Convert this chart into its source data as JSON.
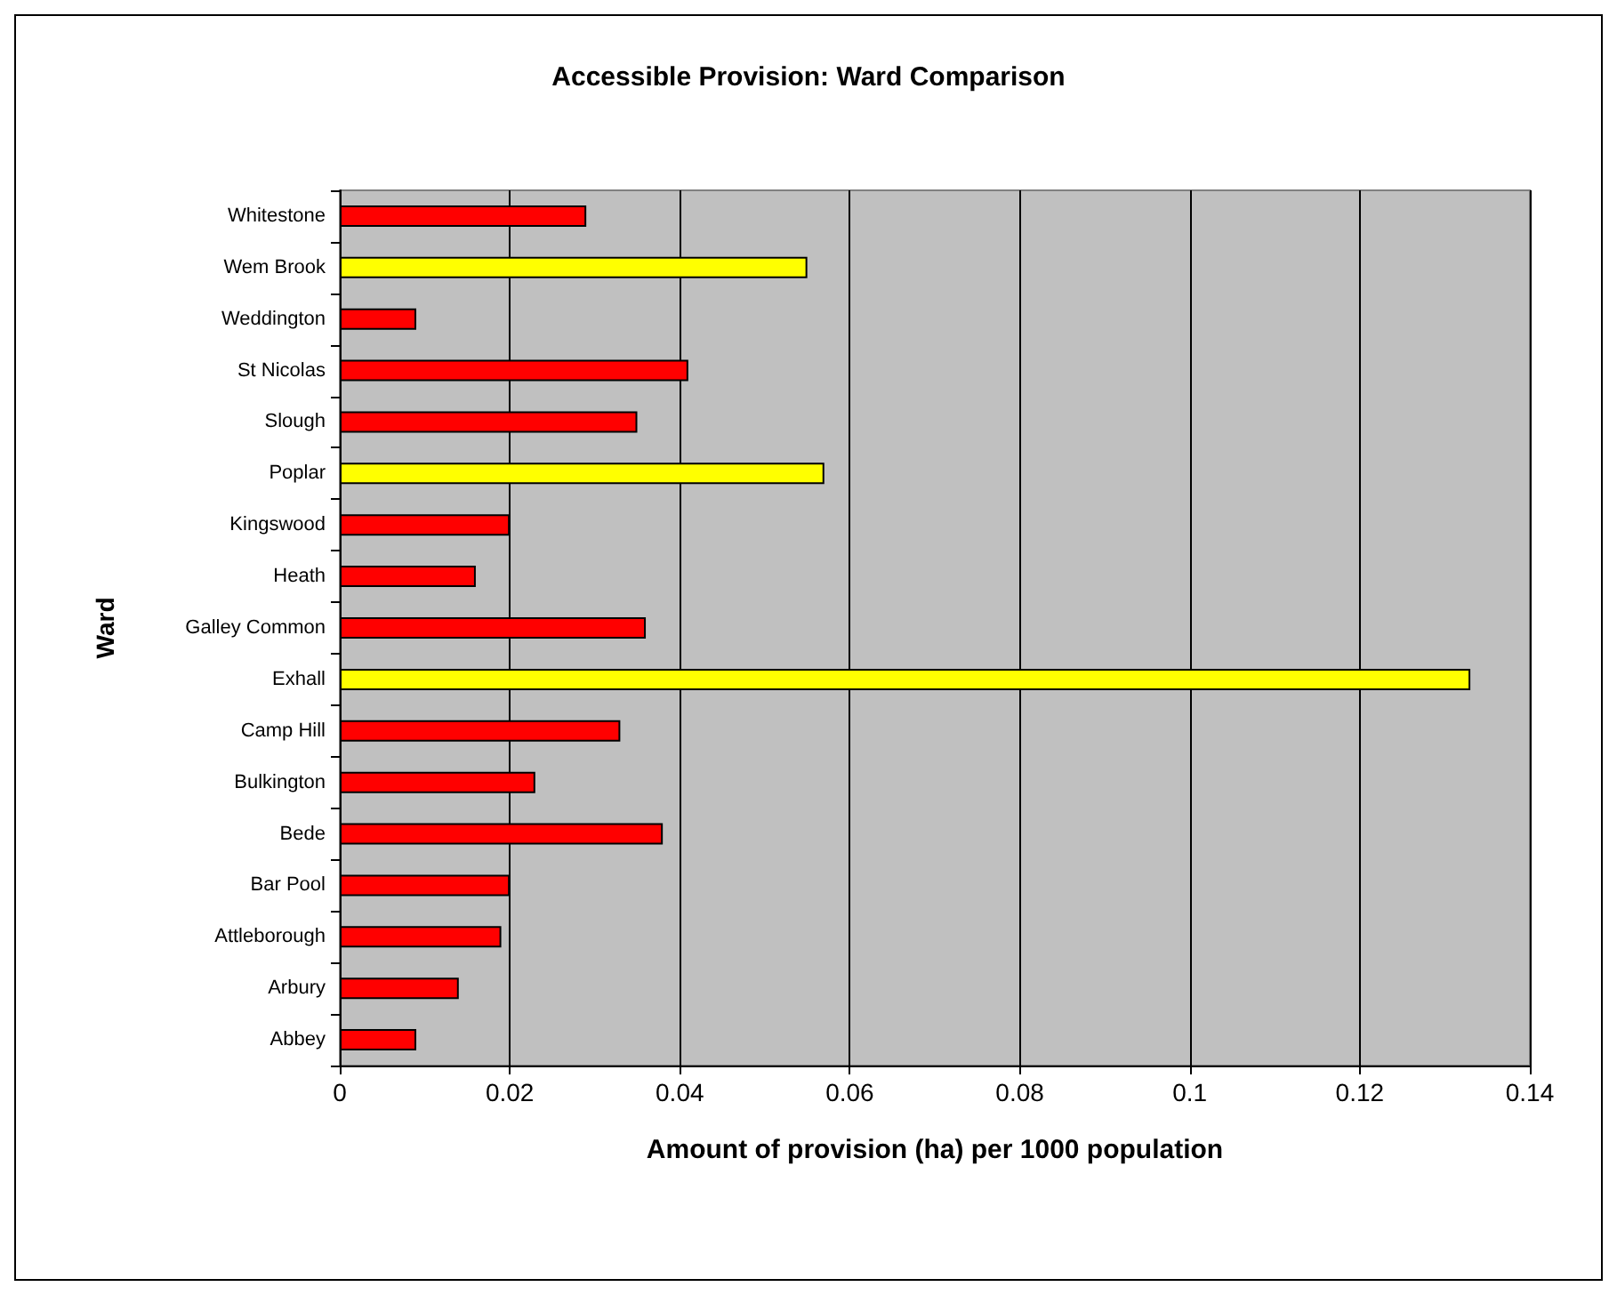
{
  "chart_data": {
    "type": "bar",
    "orientation": "horizontal",
    "title": "Accessible Provision: Ward Comparison",
    "xlabel": "Amount of provision (ha) per 1000 population",
    "ylabel": "Ward",
    "categories": [
      "Whitestone",
      "Wem Brook",
      "Weddington",
      "St Nicolas",
      "Slough",
      "Poplar",
      "Kingswood",
      "Heath",
      "Galley Common",
      "Exhall",
      "Camp Hill",
      "Bulkington",
      "Bede",
      "Bar Pool",
      "Attleborough",
      "Arbury",
      "Abbey"
    ],
    "values": [
      0.029,
      0.055,
      0.009,
      0.041,
      0.035,
      0.057,
      0.02,
      0.016,
      0.036,
      0.133,
      0.033,
      0.023,
      0.038,
      0.02,
      0.019,
      0.014,
      0.009
    ],
    "colors": [
      "#ff0000",
      "#ffff00",
      "#ff0000",
      "#ff0000",
      "#ff0000",
      "#ffff00",
      "#ff0000",
      "#ff0000",
      "#ff0000",
      "#ffff00",
      "#ff0000",
      "#ff0000",
      "#ff0000",
      "#ff0000",
      "#ff0000",
      "#ff0000",
      "#ff0000"
    ],
    "xlim": [
      0,
      0.14
    ],
    "xticks": [
      0,
      0.02,
      0.04,
      0.06,
      0.08,
      0.1,
      0.12,
      0.14
    ],
    "grid": "x"
  }
}
